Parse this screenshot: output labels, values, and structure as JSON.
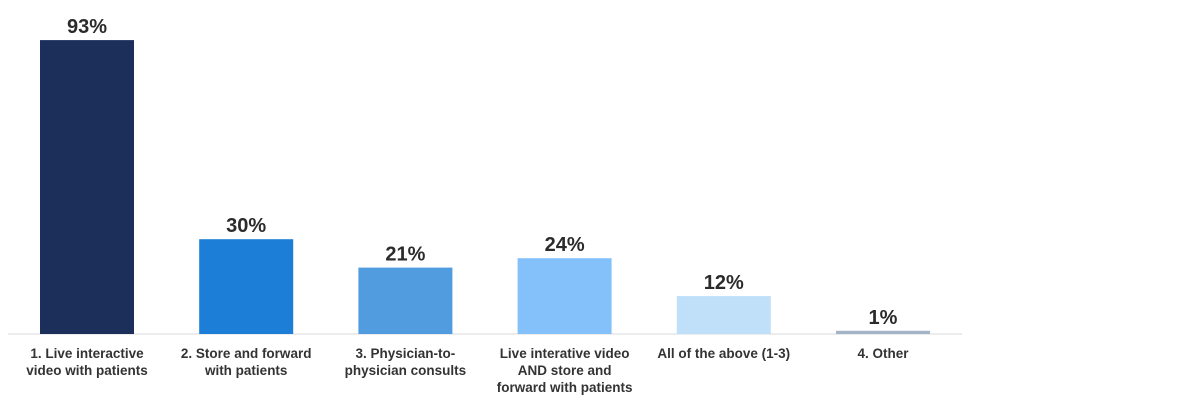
{
  "chart_data": {
    "type": "bar",
    "categories": [
      [
        "1. Live interactive",
        "video with patients"
      ],
      [
        "2. Store and forward",
        "with patients"
      ],
      [
        "3. Physician-to-",
        "physician consults"
      ],
      [
        "Live interative video",
        "AND store and",
        "forward with patients"
      ],
      [
        "All of the above (1-3)"
      ],
      [
        "4. Other"
      ]
    ],
    "values": [
      93,
      30,
      21,
      24,
      12,
      1
    ],
    "value_labels": [
      "93%",
      "30%",
      "21%",
      "24%",
      "12%",
      "1%"
    ],
    "colors": [
      "#1c2e5a",
      "#1c7ed6",
      "#519bdf",
      "#84c1fb",
      "#bfe0f8",
      "#a3b4c6"
    ],
    "title": "",
    "xlabel": "",
    "ylabel": "",
    "ylim": [
      0,
      100
    ],
    "grid": false,
    "legend": "none"
  }
}
